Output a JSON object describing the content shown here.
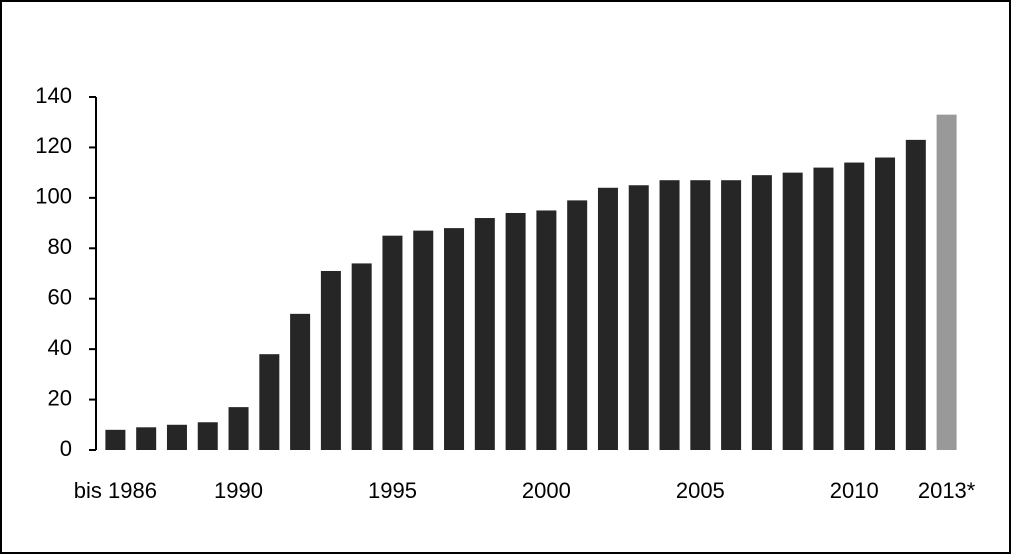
{
  "chart_data": {
    "type": "bar",
    "categories": [
      "bis 1986",
      null,
      null,
      null,
      "1990",
      null,
      null,
      null,
      null,
      "1995",
      null,
      null,
      null,
      null,
      "2000",
      null,
      null,
      null,
      null,
      "2005",
      null,
      null,
      null,
      null,
      "2010",
      null,
      null,
      "2013*"
    ],
    "values": [
      8,
      9,
      10,
      11,
      17,
      38,
      54,
      71,
      74,
      85,
      87,
      88,
      92,
      94,
      95,
      99,
      104,
      105,
      107,
      107,
      107,
      109,
      110,
      112,
      114,
      116,
      123,
      133
    ],
    "colors": [
      "#262626",
      "#262626",
      "#262626",
      "#262626",
      "#262626",
      "#262626",
      "#262626",
      "#262626",
      "#262626",
      "#262626",
      "#262626",
      "#262626",
      "#262626",
      "#262626",
      "#262626",
      "#262626",
      "#262626",
      "#262626",
      "#262626",
      "#262626",
      "#262626",
      "#262626",
      "#262626",
      "#262626",
      "#262626",
      "#262626",
      "#262626",
      "#999999"
    ],
    "ylim": [
      0,
      140
    ],
    "yticks": [
      0,
      20,
      40,
      60,
      80,
      100,
      120,
      140
    ],
    "grid": false
  }
}
